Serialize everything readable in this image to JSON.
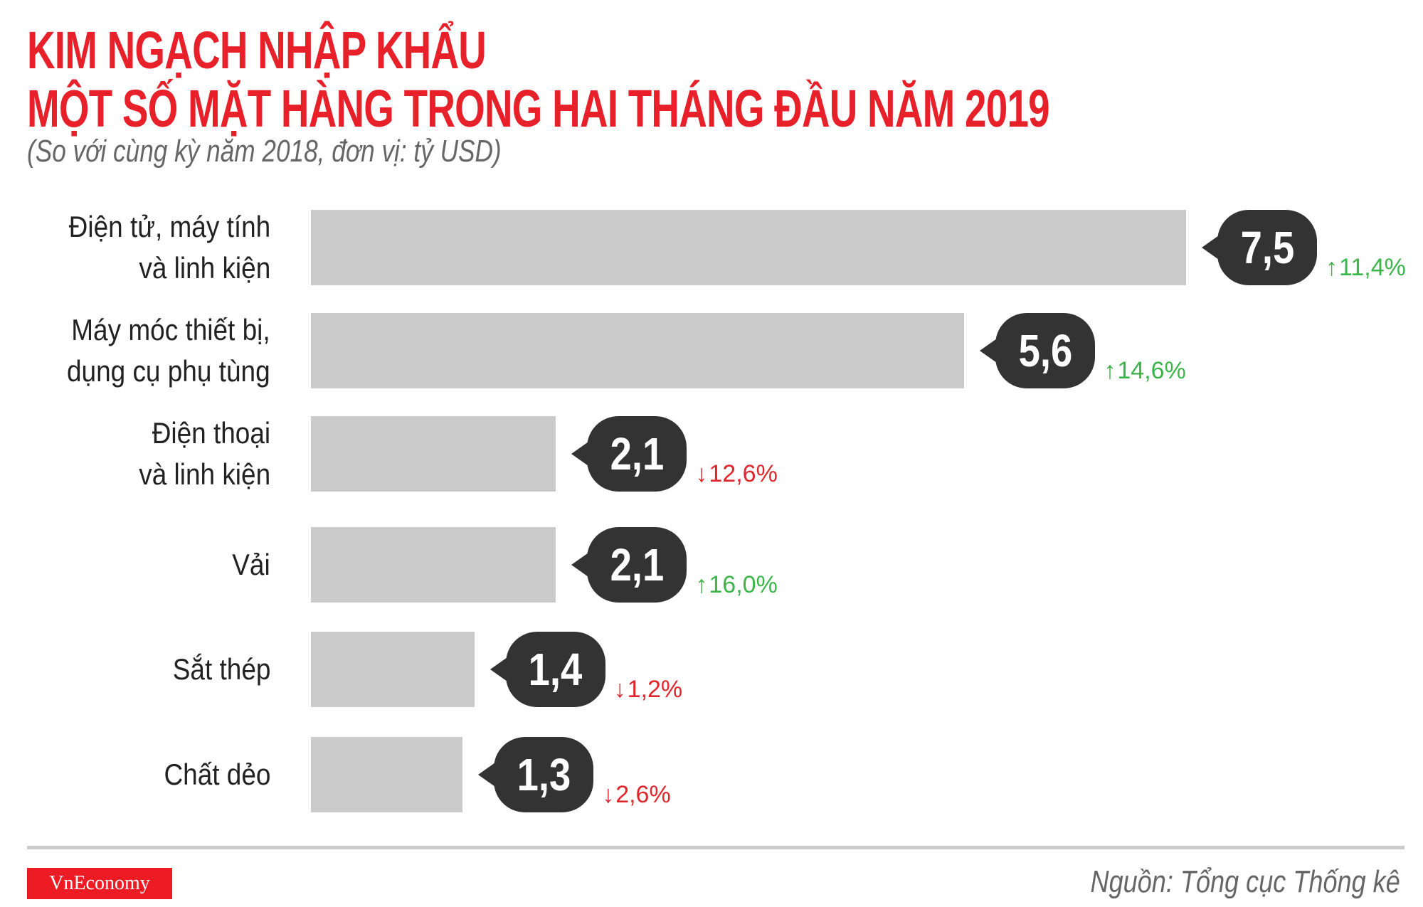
{
  "title_line1": "KIM NGẠCH NHẬP KHẨU",
  "title_line2": "MỘT SỐ MẶT HÀNG TRONG HAI THÁNG ĐẦU NĂM 2019",
  "subtitle": "(So với cùng kỳ năm 2018, đơn vị: tỷ USD)",
  "colors": {
    "title": "#e8202a",
    "bar": "#cccbcb",
    "bubble": "#333333",
    "up": "#3cb54a",
    "down": "#e0262d"
  },
  "chart_data": {
    "type": "bar",
    "orientation": "horizontal",
    "categories": [
      [
        "Điện tử, máy tính",
        "và linh kiện"
      ],
      [
        "Máy móc thiết bị,",
        "dụng cụ phụ tùng"
      ],
      [
        "Điện thoại",
        "và linh kiện"
      ],
      [
        "Vải"
      ],
      [
        "Sắt thép"
      ],
      [
        "Chất dẻo"
      ]
    ],
    "values": [
      7.5,
      5.6,
      2.1,
      2.1,
      1.4,
      1.3
    ],
    "value_labels": [
      "7,5",
      "5,6",
      "2,1",
      "2,1",
      "1,4",
      "1,3"
    ],
    "changes": [
      {
        "direction": "up",
        "text": "11,4%"
      },
      {
        "direction": "up",
        "text": "14,6%"
      },
      {
        "direction": "down",
        "text": "12,6%"
      },
      {
        "direction": "up",
        "text": "16,0%"
      },
      {
        "direction": "down",
        "text": "1,2%"
      },
      {
        "direction": "down",
        "text": "2,6%"
      }
    ],
    "xlabel": "",
    "ylabel": "",
    "grid": false
  },
  "footer": {
    "logo_text": "VnEconomy",
    "source": "Nguồn: Tổng cục Thống kê"
  }
}
